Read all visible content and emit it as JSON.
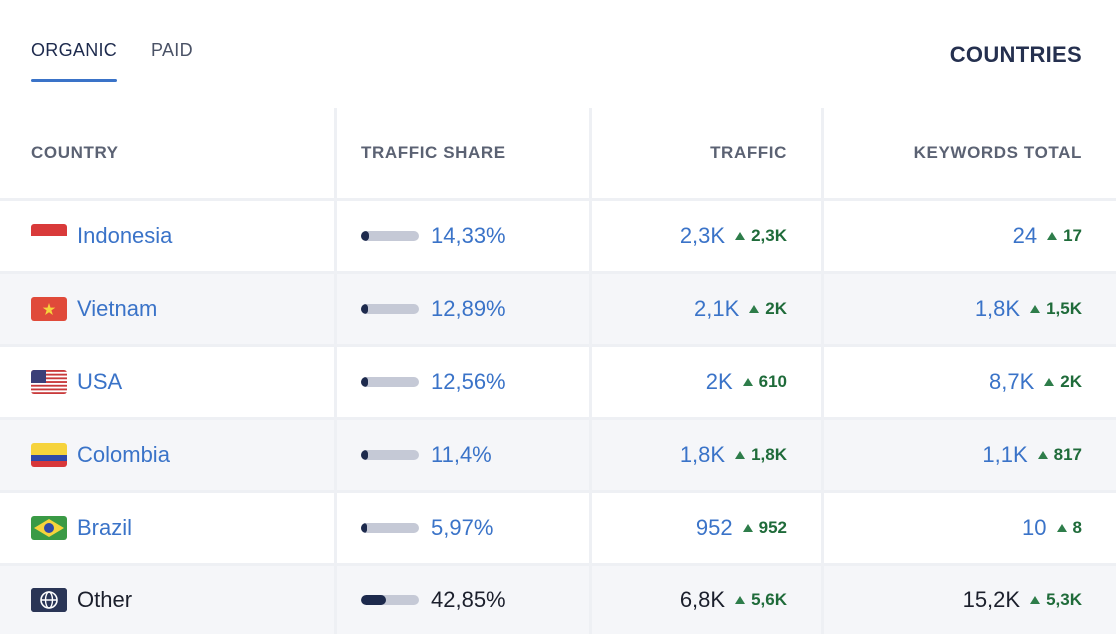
{
  "tabs": [
    {
      "label": "ORGANIC",
      "active": true
    },
    {
      "label": "PAID",
      "active": false
    }
  ],
  "section_title": "COUNTRIES",
  "columns": {
    "country": "COUNTRY",
    "traffic_share": "TRAFFIC SHARE",
    "traffic": "TRAFFIC",
    "keywords_total": "KEYWORDS TOTAL"
  },
  "rows": [
    {
      "country": "Indonesia",
      "flag": "indonesia-flag-icon",
      "share": "14,33%",
      "share_fraction": 0.1433,
      "traffic": "2,3K",
      "traffic_delta": "2,3K",
      "keywords": "24",
      "keywords_delta": "17"
    },
    {
      "country": "Vietnam",
      "flag": "vietnam-flag-icon",
      "share": "12,89%",
      "share_fraction": 0.1289,
      "traffic": "2,1K",
      "traffic_delta": "2K",
      "keywords": "1,8K",
      "keywords_delta": "1,5K"
    },
    {
      "country": "USA",
      "flag": "usa-flag-icon",
      "share": "12,56%",
      "share_fraction": 0.1256,
      "traffic": "2K",
      "traffic_delta": "610",
      "keywords": "8,7K",
      "keywords_delta": "2K"
    },
    {
      "country": "Colombia",
      "flag": "colombia-flag-icon",
      "share": "11,4%",
      "share_fraction": 0.114,
      "traffic": "1,8K",
      "traffic_delta": "1,8K",
      "keywords": "1,1K",
      "keywords_delta": "817"
    },
    {
      "country": "Brazil",
      "flag": "brazil-flag-icon",
      "share": "5,97%",
      "share_fraction": 0.0597,
      "traffic": "952",
      "traffic_delta": "952",
      "keywords": "10",
      "keywords_delta": "8"
    },
    {
      "country": "Other",
      "flag": "globe-icon",
      "share": "42,85%",
      "share_fraction": 0.4285,
      "traffic": "6,8K",
      "traffic_delta": "5,6K",
      "keywords": "15,2K",
      "keywords_delta": "5,3K"
    }
  ],
  "colors": {
    "accent": "#3a73c8",
    "positive": "#1f6b3a",
    "bar_track": "#c5c9d6",
    "bar_fill": "#1d2a4d"
  }
}
